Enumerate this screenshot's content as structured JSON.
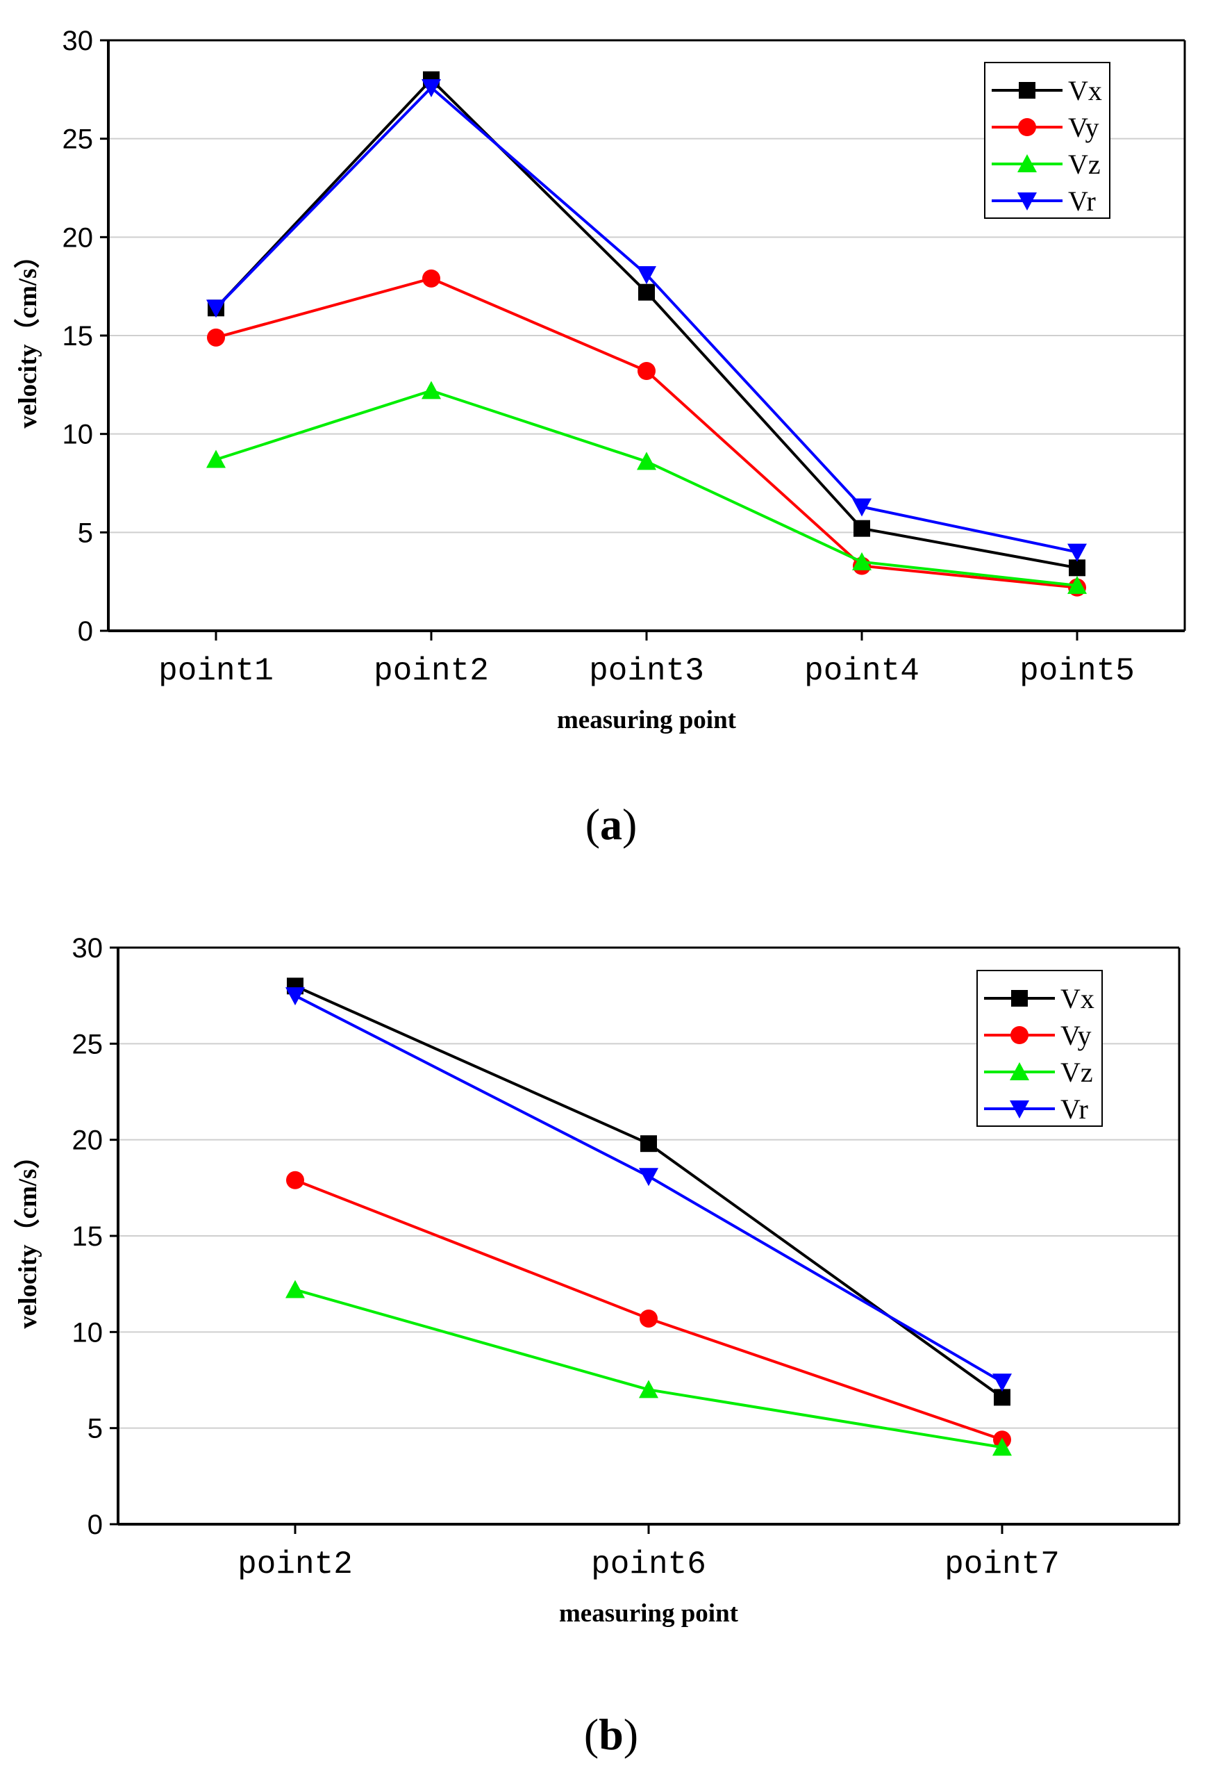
{
  "chart_data": [
    {
      "type": "line",
      "panel_label": "a",
      "title": "",
      "xlabel": "measuring point",
      "ylabel": "velocity（cm/s）",
      "ylim": [
        0,
        30
      ],
      "yticks": [
        0,
        5,
        10,
        15,
        20,
        25,
        30
      ],
      "grid": "horizontal",
      "legend_position": "top-right",
      "categories": [
        "point1",
        "point2",
        "point3",
        "point4",
        "point5"
      ],
      "series": [
        {
          "name": "Vx",
          "color": "#000000",
          "marker": "square",
          "values": [
            16.4,
            28.0,
            17.2,
            5.2,
            3.2
          ]
        },
        {
          "name": "Vy",
          "color": "#ff0000",
          "marker": "circle",
          "values": [
            14.9,
            17.9,
            13.2,
            3.3,
            2.2
          ]
        },
        {
          "name": "Vz",
          "color": "#00ee00",
          "marker": "triangle-up",
          "values": [
            8.7,
            12.2,
            8.6,
            3.5,
            2.3
          ]
        },
        {
          "name": "Vr",
          "color": "#0000ff",
          "marker": "triangle-down",
          "values": [
            16.4,
            27.6,
            18.1,
            6.3,
            4.0
          ]
        }
      ]
    },
    {
      "type": "line",
      "panel_label": "b",
      "title": "",
      "xlabel": "measuring point",
      "ylabel": "velocity（cm/s）",
      "ylim": [
        0,
        30
      ],
      "yticks": [
        0,
        5,
        10,
        15,
        20,
        25,
        30
      ],
      "grid": "horizontal",
      "legend_position": "top-right",
      "categories": [
        "point2",
        "point6",
        "point7"
      ],
      "series": [
        {
          "name": "Vx",
          "color": "#000000",
          "marker": "square",
          "values": [
            28.0,
            19.8,
            6.6
          ]
        },
        {
          "name": "Vy",
          "color": "#ff0000",
          "marker": "circle",
          "values": [
            17.9,
            10.7,
            4.4
          ]
        },
        {
          "name": "Vz",
          "color": "#00ee00",
          "marker": "triangle-up",
          "values": [
            12.2,
            7.0,
            4.0
          ]
        },
        {
          "name": "Vr",
          "color": "#0000ff",
          "marker": "triangle-down",
          "values": [
            27.5,
            18.1,
            7.4
          ]
        }
      ]
    }
  ]
}
